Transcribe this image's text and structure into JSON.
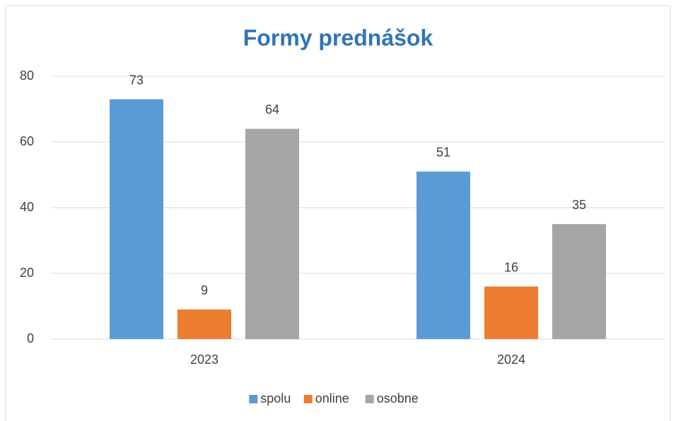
{
  "chart_data": {
    "type": "bar",
    "title": "Formy prednášok",
    "categories": [
      "2023",
      "2024"
    ],
    "series": [
      {
        "name": "spolu",
        "color": "#5b9bd5",
        "values": [
          73,
          51
        ]
      },
      {
        "name": "online",
        "color": "#ed7d31",
        "values": [
          9,
          16
        ]
      },
      {
        "name": "osobne",
        "color": "#a5a5a5",
        "values": [
          64,
          35
        ]
      }
    ],
    "ylim": [
      0,
      80
    ],
    "yticks": [
      0,
      20,
      40,
      60,
      80
    ],
    "grid": true,
    "legend": "bottom"
  }
}
